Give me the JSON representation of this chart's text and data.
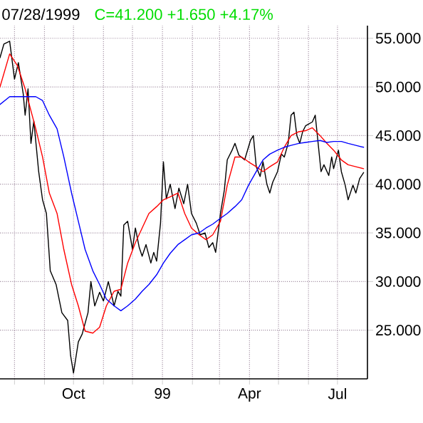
{
  "chart_data": {
    "type": "line",
    "title": "07/28/1999",
    "subtitle": "C=41.200 +1.650 +4.17%",
    "xlim": [
      "1998-07-17",
      "1999-08-01"
    ],
    "xticks": [
      {
        "value": "1998-08-01",
        "label": null
      },
      {
        "value": "1998-09-01",
        "label": null
      },
      {
        "value": "1998-10-01",
        "label": "Oct"
      },
      {
        "value": "1998-11-01",
        "label": null
      },
      {
        "value": "1998-12-01",
        "label": null
      },
      {
        "value": "1999-01-01",
        "label": "99"
      },
      {
        "value": "1999-02-01",
        "label": null
      },
      {
        "value": "1999-03-01",
        "label": null
      },
      {
        "value": "1999-04-01",
        "label": "Apr"
      },
      {
        "value": "1999-05-01",
        "label": null
      },
      {
        "value": "1999-06-01",
        "label": null
      },
      {
        "value": "1999-07-01",
        "label": "Jul"
      }
    ],
    "ylim": [
      20,
      56.3
    ],
    "yticks": [
      {
        "value": 25,
        "label": "25.000"
      },
      {
        "value": 30,
        "label": "30.000"
      },
      {
        "value": 35,
        "label": "35.000"
      },
      {
        "value": 40,
        "label": "40.000"
      },
      {
        "value": 45,
        "label": "45.000"
      },
      {
        "value": 50,
        "label": "50.000"
      },
      {
        "value": 55,
        "label": "55.000"
      }
    ],
    "grid": true,
    "series": [
      {
        "color": "#000000",
        "x": [
          "1998-07-17",
          "1998-07-21",
          "1998-07-27",
          "1998-08-01",
          "1998-08-05",
          "1998-08-10",
          "1998-08-12",
          "1998-08-15",
          "1998-08-18",
          "1998-08-21",
          "1998-08-26",
          "1998-08-30",
          "1998-09-03",
          "1998-09-07",
          "1998-09-13",
          "1998-09-19",
          "1998-09-25",
          "1998-09-28",
          "1998-10-01",
          "1998-10-06",
          "1998-10-10",
          "1998-10-16",
          "1998-10-19",
          "1998-10-23",
          "1998-10-28",
          "1998-11-01",
          "1998-11-06",
          "1998-11-12",
          "1998-11-16",
          "1998-11-19",
          "1998-11-22",
          "1998-11-26",
          "1998-12-01",
          "1998-12-04",
          "1998-12-08",
          "1998-12-11",
          "1998-12-15",
          "1998-12-20",
          "1998-12-23",
          "1998-12-26",
          "1998-12-30",
          "1999-01-02",
          "1999-01-05",
          "1999-01-09",
          "1999-01-14",
          "1999-01-18",
          "1999-01-23",
          "1999-01-27",
          "1999-01-31",
          "1999-02-05",
          "1999-02-09",
          "1999-02-14",
          "1999-02-18",
          "1999-02-22",
          "1999-02-25",
          "1999-03-02",
          "1999-03-06",
          "1999-03-09",
          "1999-03-14",
          "1999-03-17",
          "1999-03-21",
          "1999-03-27",
          "1999-04-02",
          "1999-04-05",
          "1999-04-08",
          "1999-04-12",
          "1999-04-15",
          "1999-04-19",
          "1999-04-22",
          "1999-04-25",
          "1999-04-30",
          "1999-05-04",
          "1999-05-07",
          "1999-05-11",
          "1999-05-14",
          "1999-05-17",
          "1999-05-20",
          "1999-05-23",
          "1999-05-26",
          "1999-05-29",
          "1999-06-05",
          "1999-06-08",
          "1999-06-11",
          "1999-06-14",
          "1999-06-17",
          "1999-06-22",
          "1999-06-25",
          "1999-06-27",
          "1999-07-02",
          "1999-07-05",
          "1999-07-09",
          "1999-07-12",
          "1999-07-17",
          "1999-07-20",
          "1999-07-24",
          "1999-07-28"
        ],
        "values": [
          53,
          54.4,
          54.7,
          50.8,
          52.5,
          49.3,
          47.1,
          49.8,
          44.2,
          46.5,
          41.3,
          38.4,
          37,
          31.1,
          29.7,
          26.8,
          26,
          22.4,
          20.6,
          23.8,
          24.6,
          26.8,
          30,
          27.5,
          28.9,
          28,
          30,
          27.5,
          29,
          28.5,
          35.8,
          36.2,
          33.3,
          35.5,
          33.5,
          32.6,
          33.8,
          31.9,
          33,
          32.1,
          36,
          42.3,
          38.5,
          40,
          37.5,
          39.6,
          38,
          40,
          37,
          36,
          34.8,
          35,
          33.5,
          34,
          33,
          37,
          39.4,
          42.5,
          43.5,
          44.2,
          43,
          42.5,
          44.5,
          45,
          41.8,
          40.8,
          42.3,
          40,
          39.1,
          40.2,
          41.3,
          43.1,
          42.8,
          44.2,
          47.1,
          47.4,
          45,
          44.2,
          45.4,
          46,
          46.4,
          47.1,
          44.2,
          41.3,
          42,
          40.9,
          42.8,
          41.6,
          43.5,
          41.3,
          39.9,
          38.4,
          39.9,
          39.1,
          40.6,
          41.2
        ]
      },
      {
        "color": "#ff0000",
        "x": [
          "1998-07-17",
          "1998-07-27",
          "1998-08-04",
          "1998-08-12",
          "1998-08-23",
          "1998-08-30",
          "1998-09-06",
          "1998-09-14",
          "1998-09-21",
          "1998-09-29",
          "1998-10-06",
          "1998-10-13",
          "1998-10-21",
          "1998-10-28",
          "1998-11-04",
          "1998-11-12",
          "1998-11-19",
          "1998-11-26",
          "1998-12-04",
          "1998-12-11",
          "1998-12-18",
          "1998-12-26",
          "1999-01-02",
          "1999-01-09",
          "1999-01-17",
          "1999-01-24",
          "1999-01-31",
          "1999-02-08",
          "1999-02-15",
          "1999-02-22",
          "1999-03-02",
          "1999-03-09",
          "1999-03-17",
          "1999-03-24",
          "1999-03-31",
          "1999-04-08",
          "1999-04-15",
          "1999-04-22",
          "1999-04-30",
          "1999-05-07",
          "1999-05-14",
          "1999-05-22",
          "1999-05-29",
          "1999-06-05",
          "1999-06-13",
          "1999-06-20",
          "1999-06-27",
          "1999-07-05",
          "1999-07-12",
          "1999-07-20",
          "1999-07-28"
        ],
        "values": [
          50,
          53.4,
          52.2,
          49.8,
          45.7,
          42.8,
          39.1,
          37,
          33.3,
          29.7,
          27.5,
          24.9,
          24.7,
          25.3,
          27.5,
          29,
          29.2,
          31.9,
          34,
          35.5,
          37,
          37.7,
          38.4,
          38.7,
          39.1,
          37,
          35.5,
          34.8,
          34.3,
          34.8,
          36.2,
          39.9,
          42.8,
          42.8,
          42.3,
          41.8,
          41.3,
          41.8,
          42.3,
          43.8,
          45,
          45.4,
          45.5,
          45.8,
          45,
          44.2,
          43.5,
          42.5,
          42,
          41.8,
          41.6
        ]
      },
      {
        "color": "#0000ff",
        "x": [
          "1998-07-17",
          "1998-07-27",
          "1998-08-04",
          "1998-08-12",
          "1998-08-23",
          "1998-08-30",
          "1998-09-06",
          "1998-09-14",
          "1998-09-21",
          "1998-09-29",
          "1998-10-06",
          "1998-10-13",
          "1998-10-21",
          "1998-10-28",
          "1998-11-04",
          "1998-11-12",
          "1998-11-19",
          "1998-11-26",
          "1998-12-04",
          "1998-12-11",
          "1998-12-18",
          "1998-12-26",
          "1999-01-02",
          "1999-01-09",
          "1999-01-17",
          "1999-01-24",
          "1999-01-31",
          "1999-02-08",
          "1999-02-15",
          "1999-02-22",
          "1999-03-02",
          "1999-03-09",
          "1999-03-17",
          "1999-03-24",
          "1999-03-31",
          "1999-04-08",
          "1999-04-15",
          "1999-04-22",
          "1999-04-30",
          "1999-05-07",
          "1999-05-14",
          "1999-05-22",
          "1999-05-29",
          "1999-06-05",
          "1999-06-13",
          "1999-06-20",
          "1999-06-27",
          "1999-07-05",
          "1999-07-12",
          "1999-07-20",
          "1999-07-28"
        ],
        "values": [
          48.2,
          49,
          49,
          49,
          49,
          48.6,
          47.1,
          45.7,
          42.8,
          39.1,
          36.2,
          33.3,
          31.1,
          29.7,
          28.2,
          27.5,
          27,
          27.5,
          28.2,
          29,
          29.7,
          30.7,
          31.9,
          32.9,
          33.8,
          34.3,
          34.8,
          35,
          35.5,
          35.9,
          36.5,
          37,
          37.7,
          38.4,
          39.9,
          41.3,
          42.5,
          43.1,
          43.5,
          43.8,
          44,
          44.2,
          44.3,
          44.4,
          44.5,
          44.3,
          44.4,
          44.4,
          44.2,
          44,
          43.8
        ]
      }
    ]
  }
}
